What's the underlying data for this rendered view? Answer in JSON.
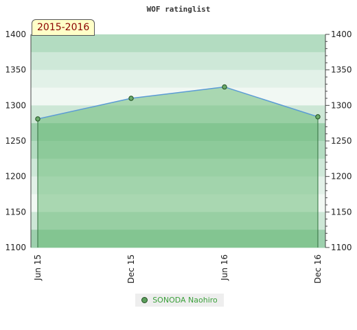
{
  "chart_data": {
    "type": "line",
    "title": "WOF ratinglist",
    "season_label": "2015-2016",
    "categories": [
      "Jun 15",
      "Dec 15",
      "Jun 16",
      "Dec 16"
    ],
    "series": [
      {
        "name": "SONODA Naohiro",
        "values": [
          1281,
          1310,
          1326,
          1284
        ]
      }
    ],
    "ylim": [
      1100,
      1400
    ],
    "y_ticks": [
      1100,
      1150,
      1200,
      1250,
      1300,
      1350,
      1400
    ],
    "grid": true,
    "legend_position": "bottom-center",
    "colors": {
      "line": "#5b9bd5",
      "area": "#6dbb7a",
      "marker_fill": "#6aaa6a",
      "marker_stroke": "#1f4d1f"
    }
  }
}
